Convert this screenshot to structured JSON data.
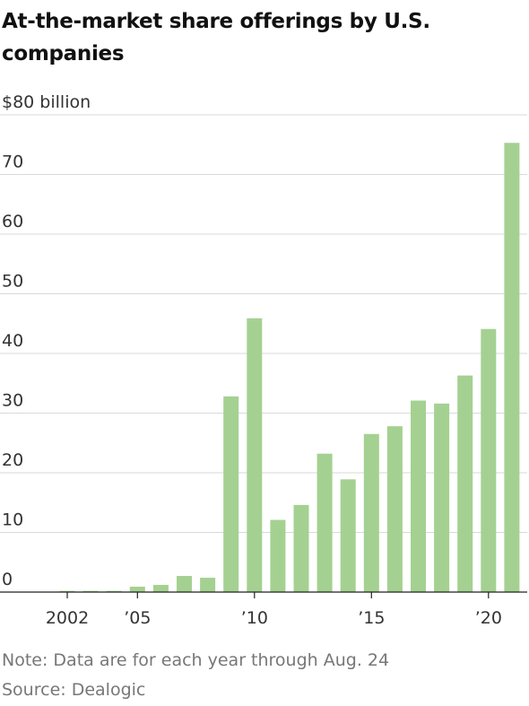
{
  "header": {
    "title": "At-the-market share offerings by U.S. companies"
  },
  "chart_data": {
    "type": "bar",
    "title": "At-the-market share offerings by U.S. companies",
    "ylabel": "",
    "xlabel": "",
    "ylim": [
      0,
      80
    ],
    "y_ticks": [
      0,
      10,
      20,
      30,
      40,
      50,
      60,
      70,
      80
    ],
    "y_tick_labels": [
      "0",
      "10",
      "20",
      "30",
      "40",
      "50",
      "60",
      "70",
      "$80 billion"
    ],
    "categories": [
      2002,
      2003,
      2004,
      2005,
      2006,
      2007,
      2008,
      2009,
      2010,
      2011,
      2012,
      2013,
      2014,
      2015,
      2016,
      2017,
      2018,
      2019,
      2020,
      2021
    ],
    "values": [
      0.2,
      0.2,
      0.2,
      0.9,
      1.2,
      2.7,
      2.4,
      32.8,
      45.9,
      12.1,
      14.6,
      23.2,
      18.9,
      26.5,
      27.8,
      32.1,
      31.6,
      36.3,
      44.1,
      75.3
    ],
    "x_ticks": [
      {
        "year": 2002,
        "label": "2002"
      },
      {
        "year": 2005,
        "label": "’05"
      },
      {
        "year": 2010,
        "label": "’10"
      },
      {
        "year": 2015,
        "label": "’15"
      },
      {
        "year": 2020,
        "label": "’20"
      }
    ],
    "bar_color": "#a4d191",
    "grid": true
  },
  "footer": {
    "note": "Note: Data are for each year through Aug. 24",
    "source": "Source: Dealogic"
  }
}
